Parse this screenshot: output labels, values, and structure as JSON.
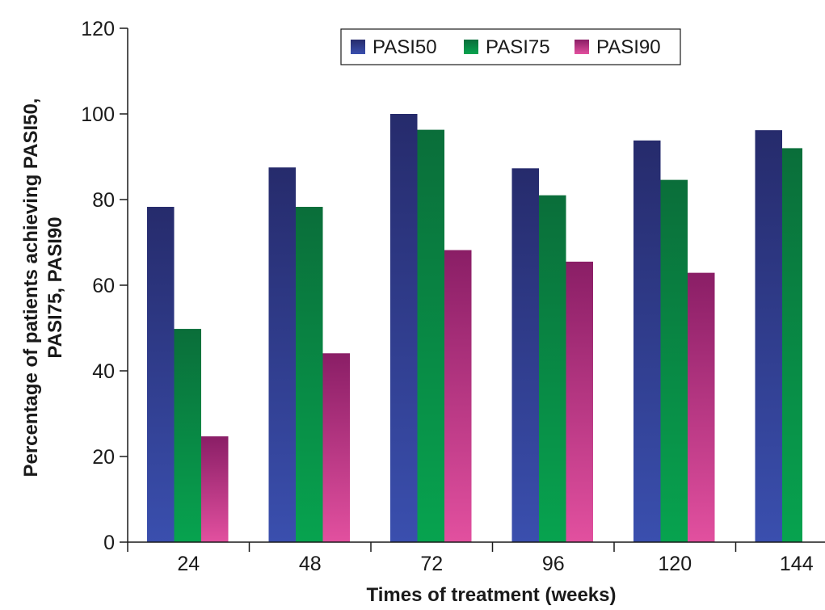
{
  "chart_data": {
    "type": "bar",
    "title": "",
    "categories": [
      "24",
      "48",
      "72",
      "96",
      "120",
      "144"
    ],
    "series": [
      {
        "name": "PASI50",
        "values": [
          78.3,
          87.5,
          100,
          87.3,
          93.8,
          96.2
        ],
        "color_top": "#262b6c",
        "color_bottom": "#3a4fae"
      },
      {
        "name": "PASI75",
        "values": [
          49.8,
          78.3,
          96.3,
          81.0,
          84.6,
          92.0
        ],
        "color_top": "#0a6e3a",
        "color_bottom": "#07a34f"
      },
      {
        "name": "PASI90",
        "values": [
          24.7,
          44.1,
          68.2,
          65.5,
          62.9,
          null
        ],
        "color_top": "#8a1e66",
        "color_bottom": "#e2509f"
      }
    ],
    "xlabel": "Times of treatment (weeks)",
    "ylabel_line1": "Percentage of patients achieving PASI50,",
    "ylabel_line2": "PASI75, PASI90",
    "ylim": [
      0,
      120
    ],
    "yticks": [
      0,
      20,
      40,
      60,
      80,
      100,
      120
    ],
    "legend": [
      "PASI50",
      "PASI75",
      "PASI90"
    ],
    "legend_position": "top-right",
    "grid": false
  }
}
